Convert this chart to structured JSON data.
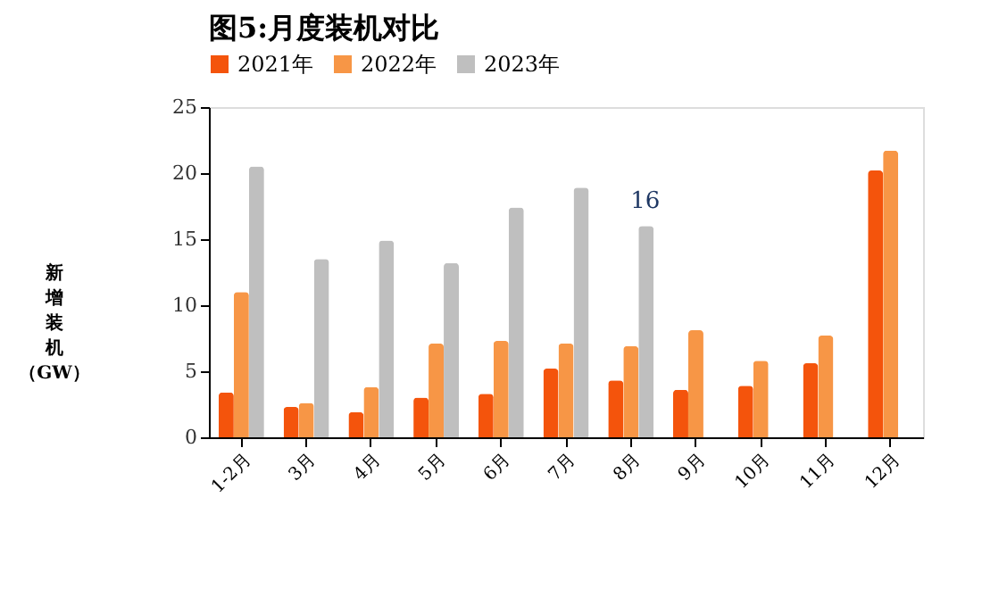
{
  "chart_data": {
    "type": "bar",
    "title": "图5:月度装机对比",
    "ylabel": "新增装机（GW）",
    "categories": [
      "1-2月",
      "3月",
      "4月",
      "5月",
      "6月",
      "7月",
      "8月",
      "9月",
      "10月",
      "11月",
      "12月"
    ],
    "series": [
      {
        "name": "2021年",
        "color": "#f4540c",
        "values": [
          3.4,
          2.3,
          1.9,
          3.0,
          3.3,
          5.2,
          4.3,
          3.6,
          3.9,
          5.6,
          20.2
        ]
      },
      {
        "name": "2022年",
        "color": "#f79646",
        "values": [
          11.0,
          2.6,
          3.8,
          7.1,
          7.3,
          7.1,
          6.9,
          8.1,
          5.8,
          7.7,
          21.7
        ]
      },
      {
        "name": "2023年",
        "color": "#bfbfbf",
        "values": [
          20.5,
          13.5,
          14.9,
          13.2,
          17.4,
          18.9,
          16,
          null,
          null,
          null,
          null
        ]
      }
    ],
    "annotations": [
      {
        "text": "16",
        "x": "8月",
        "y": 16
      }
    ],
    "ylim": [
      0,
      25
    ],
    "yticks": [
      0,
      5,
      10,
      15,
      20,
      25
    ],
    "grid": false,
    "legend": "top"
  }
}
